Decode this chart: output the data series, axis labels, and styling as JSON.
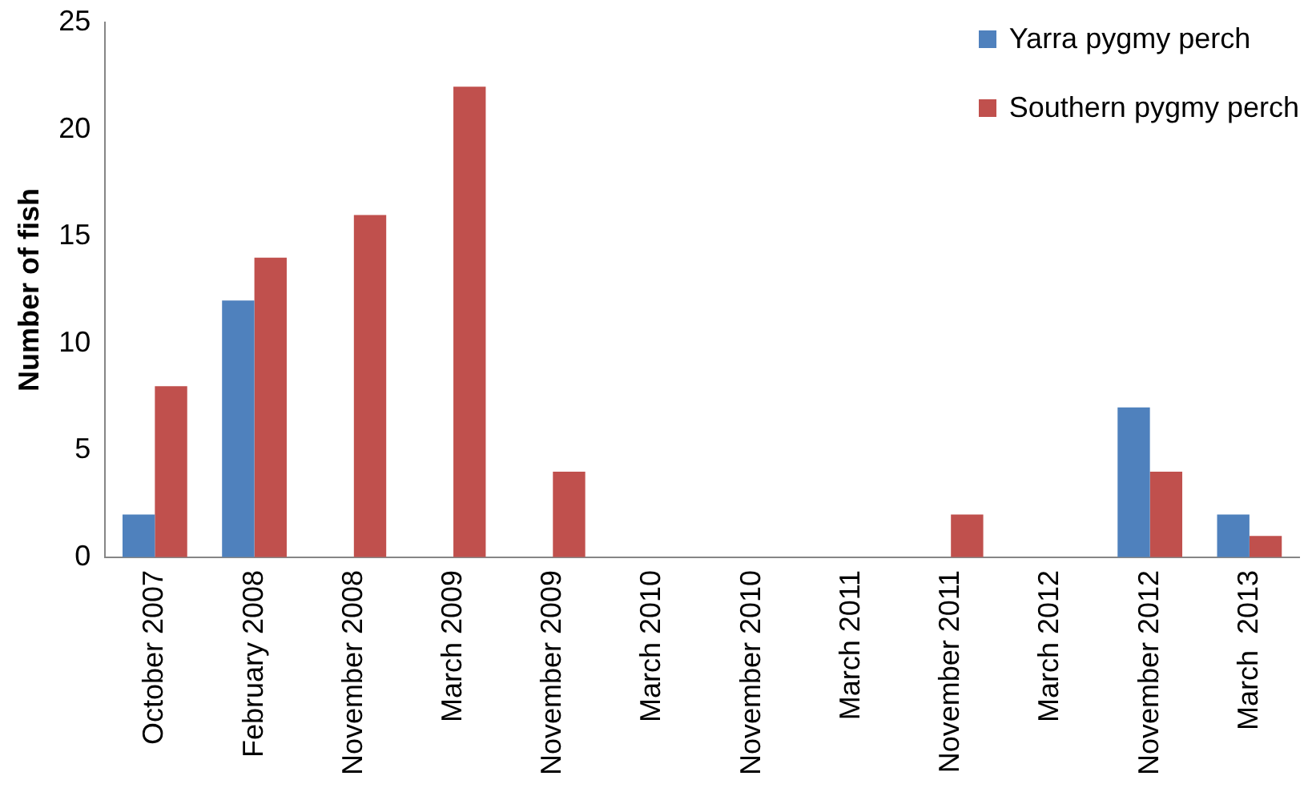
{
  "chart_data": {
    "type": "bar",
    "ylabel": "Number of fish",
    "categories": [
      "October 2007",
      "February 2008",
      "November 2008",
      "March 2009",
      "November 2009",
      "March 2010",
      "November 2010",
      "March 2011",
      "November 2011",
      "March 2012",
      "November 2012",
      "March  2013"
    ],
    "series": [
      {
        "name": "Yarra pygmy perch",
        "color": "#4f81bd",
        "values": [
          2,
          12,
          0,
          0,
          0,
          0,
          0,
          0,
          0,
          0,
          7,
          2
        ]
      },
      {
        "name": "Southern pygmy perch",
        "color": "#c0504d",
        "values": [
          8,
          14,
          16,
          22,
          4,
          0,
          0,
          0,
          2,
          0,
          4,
          1
        ]
      }
    ],
    "ylim": [
      0,
      25
    ],
    "yticks": [
      0,
      5,
      10,
      15,
      20,
      25
    ],
    "grid": false,
    "legend": "top right"
  }
}
